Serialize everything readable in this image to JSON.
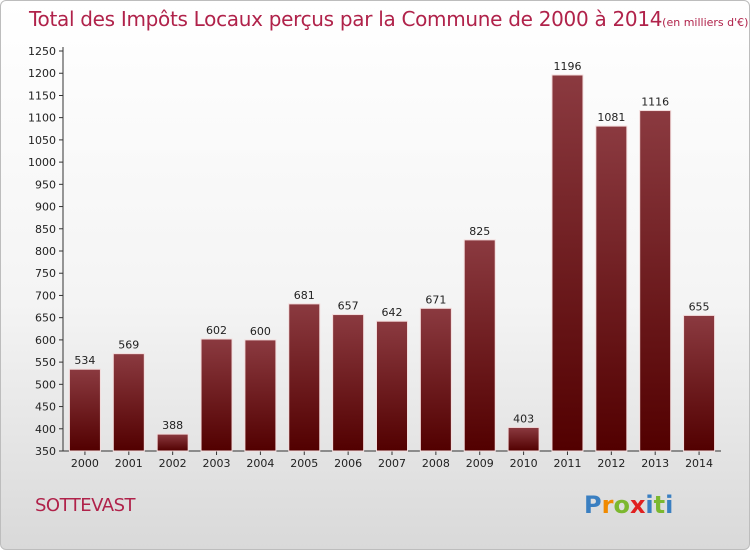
{
  "title": "Total des Impôts Locaux perçus par la Commune de 2000 à 2014",
  "title_unit": "(en milliers d'€)",
  "commune": "SOTTEVAST",
  "logo": {
    "text": "Proxiti",
    "letters": [
      "P",
      "r",
      "o",
      "x",
      "i",
      "t",
      "i"
    ],
    "colors": [
      "#3a7fc1",
      "#f08a00",
      "#7cb82f",
      "#e02020",
      "#3a7fc1",
      "#7cb82f",
      "#3a7fc1"
    ]
  },
  "colors": {
    "bar_top": "#8b3a40",
    "bar_bottom": "#520000",
    "accent": "#b0224a"
  },
  "chart_data": {
    "type": "bar",
    "title": "Total des Impôts Locaux perçus par la Commune de 2000 à 2014",
    "categories": [
      "2000",
      "2001",
      "2002",
      "2003",
      "2004",
      "2005",
      "2006",
      "2007",
      "2008",
      "2009",
      "2010",
      "2011",
      "2012",
      "2013",
      "2014"
    ],
    "values": [
      534,
      569,
      388,
      602,
      600,
      681,
      657,
      642,
      671,
      825,
      403,
      1196,
      1081,
      1116,
      655
    ],
    "yticks": [
      350,
      400,
      450,
      500,
      550,
      600,
      650,
      700,
      750,
      800,
      850,
      900,
      950,
      1000,
      1050,
      1100,
      1150,
      1200,
      1250
    ],
    "ylim": [
      350,
      1250
    ],
    "grid": false,
    "xlabel": "",
    "ylabel": ""
  }
}
